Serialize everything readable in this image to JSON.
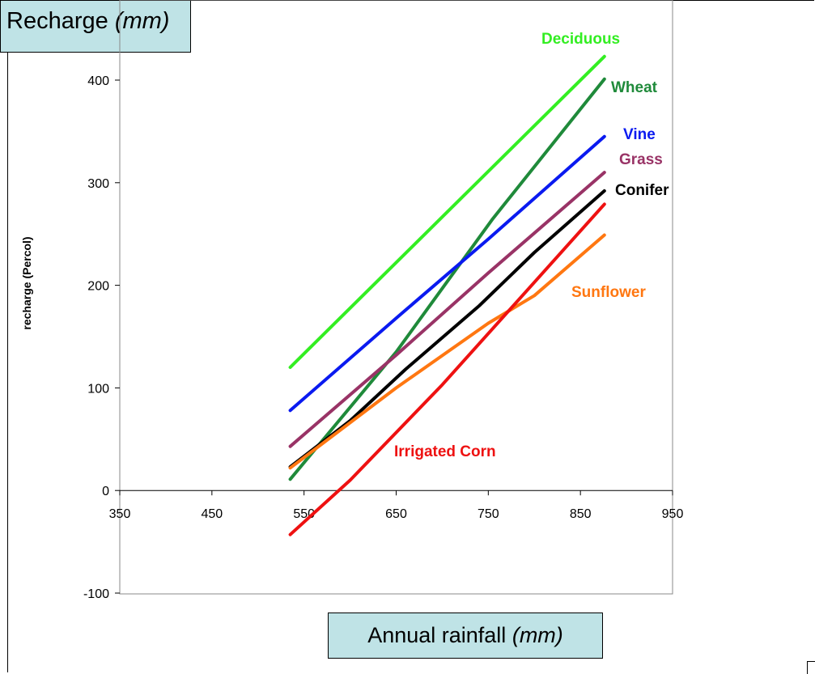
{
  "chart_data": {
    "type": "line",
    "title": "Recharge",
    "title_unit": "(mm)",
    "xlabel": "Annual rainfall",
    "xlabel_unit": "(mm)",
    "ylabel": "recharge (Percol)",
    "xlim": [
      350,
      950
    ],
    "ylim": [
      -100,
      400
    ],
    "x_ticks": [
      350,
      450,
      550,
      650,
      750,
      850,
      950
    ],
    "y_ticks": [
      -100,
      0,
      100,
      200,
      300,
      400
    ],
    "grid": false,
    "series": [
      {
        "name": "Deciduous",
        "color": "#33ee22",
        "points": [
          [
            535,
            120
          ],
          [
            876,
            423
          ]
        ]
      },
      {
        "name": "Wheat",
        "color": "#1f8a3a",
        "points": [
          [
            535,
            11
          ],
          [
            650,
            135
          ],
          [
            755,
            265
          ],
          [
            876,
            401
          ]
        ]
      },
      {
        "name": "Vine",
        "color": "#0a1af0",
        "points": [
          [
            535,
            78
          ],
          [
            650,
            168
          ],
          [
            750,
            245
          ],
          [
            876,
            345
          ]
        ]
      },
      {
        "name": "Grass",
        "color": "#993366",
        "points": [
          [
            535,
            43
          ],
          [
            650,
            132
          ],
          [
            750,
            212
          ],
          [
            876,
            310
          ]
        ]
      },
      {
        "name": "Conifer",
        "color": "#000000",
        "points": [
          [
            535,
            23
          ],
          [
            600,
            68
          ],
          [
            660,
            118
          ],
          [
            740,
            180
          ],
          [
            800,
            232
          ],
          [
            876,
            292
          ]
        ]
      },
      {
        "name": "Sunflower",
        "color": "#ff7711",
        "points": [
          [
            535,
            22
          ],
          [
            650,
            100
          ],
          [
            750,
            163
          ],
          [
            800,
            190
          ],
          [
            876,
            249
          ]
        ]
      },
      {
        "name": "Irrigated Corn",
        "color": "#ee1111",
        "points": [
          [
            535,
            -43
          ],
          [
            600,
            10
          ],
          [
            700,
            103
          ],
          [
            800,
            203
          ],
          [
            876,
            279
          ]
        ]
      }
    ]
  }
}
